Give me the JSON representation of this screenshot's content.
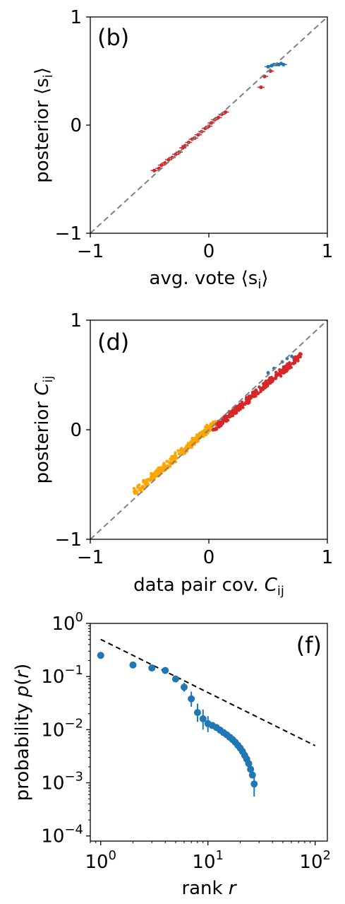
{
  "chart_data": [
    {
      "type": "scatter",
      "panel_label": "(b)",
      "xlabel": "avg. vote ⟨s",
      "xlabel_sub": "i",
      "xlabel_tail": "⟩",
      "ylabel": "posterior ⟨s",
      "ylabel_sub": "i",
      "ylabel_tail": "⟩",
      "xlim": [
        -1,
        1
      ],
      "ylim": [
        -1,
        1
      ],
      "x_ticks": [
        "−1",
        "0",
        "1"
      ],
      "y_ticks": [
        "−1",
        "0",
        "1"
      ],
      "diagonal": true,
      "colors": {
        "red": "#d62728",
        "blue": "#1f77b4",
        "diag": "#808080"
      },
      "series": [
        {
          "color": "red",
          "points": [
            [
              -0.46,
              -0.42
            ],
            [
              -0.42,
              -0.4
            ],
            [
              -0.4,
              -0.37
            ],
            [
              -0.37,
              -0.35
            ],
            [
              -0.34,
              -0.32
            ],
            [
              -0.31,
              -0.3
            ],
            [
              -0.28,
              -0.27
            ],
            [
              -0.25,
              -0.25
            ],
            [
              -0.22,
              -0.21
            ],
            [
              -0.2,
              -0.19
            ],
            [
              -0.17,
              -0.16
            ],
            [
              -0.14,
              -0.13
            ],
            [
              -0.12,
              -0.12
            ],
            [
              -0.09,
              -0.09
            ],
            [
              -0.06,
              -0.06
            ],
            [
              -0.03,
              -0.03
            ],
            [
              0.0,
              -0.01
            ],
            [
              0.02,
              0.02
            ],
            [
              0.05,
              0.05
            ],
            [
              0.08,
              0.07
            ],
            [
              0.11,
              0.1
            ],
            [
              0.14,
              0.12
            ],
            [
              0.44,
              0.35
            ],
            [
              0.47,
              0.45
            ],
            [
              0.52,
              0.5
            ]
          ]
        },
        {
          "color": "blue",
          "points": [
            [
              0.5,
              0.54
            ],
            [
              0.53,
              0.55
            ],
            [
              0.55,
              0.56
            ],
            [
              0.57,
              0.56
            ],
            [
              0.59,
              0.56
            ],
            [
              0.61,
              0.57
            ],
            [
              0.63,
              0.56
            ]
          ]
        }
      ]
    },
    {
      "type": "scatter",
      "panel_label": "(d)",
      "xlabel": "data pair cov. ",
      "xlabel_var": "C",
      "xlabel_sub": "ij",
      "ylabel": "posterior ",
      "ylabel_var": "C",
      "ylabel_sub": "ij",
      "xlim": [
        -1,
        1
      ],
      "ylim": [
        -1,
        1
      ],
      "x_ticks": [
        "−1",
        "0",
        "1"
      ],
      "y_ticks": [
        "−1",
        "0",
        "1"
      ],
      "diagonal": true,
      "colors": {
        "orange": "#ffa500",
        "red": "#d62728",
        "blue": "#1f77b4",
        "diag": "#808080"
      },
      "series": [
        {
          "color": "orange",
          "band": {
            "x_start": -0.62,
            "x_end": 0.05,
            "y_start": -0.57,
            "y_end": 0.06,
            "spread": 0.035
          }
        },
        {
          "color": "red",
          "band": {
            "x_start": 0.05,
            "x_end": 0.78,
            "y_start": 0.02,
            "y_end": 0.68,
            "spread": 0.03
          }
        },
        {
          "color": "blue",
          "points": [
            [
              0.5,
              0.52
            ],
            [
              0.55,
              0.56
            ],
            [
              0.62,
              0.62
            ],
            [
              0.66,
              0.65
            ],
            [
              0.7,
              0.67
            ]
          ]
        }
      ]
    },
    {
      "type": "scatter",
      "panel_label": "(f)",
      "xlabel": "rank ",
      "xlabel_var": "r",
      "ylabel": "probability ",
      "ylabel_var": "p",
      "ylabel_tail_pre": "(",
      "ylabel_tail_post": ")",
      "xscale": "log",
      "yscale": "log",
      "xlim": [
        0.8,
        130
      ],
      "ylim": [
        8e-05,
        1
      ],
      "x_ticks": [
        {
          "base": "10",
          "exp": "0",
          "value": 1
        },
        {
          "base": "10",
          "exp": "1",
          "value": 10
        },
        {
          "base": "10",
          "exp": "2",
          "value": 100
        }
      ],
      "y_ticks": [
        {
          "base": "10",
          "exp": "0",
          "value": 1
        },
        {
          "base": "10",
          "exp": "−1",
          "value": 0.1
        },
        {
          "base": "10",
          "exp": "−2",
          "value": 0.01
        },
        {
          "base": "10",
          "exp": "−3",
          "value": 0.001
        },
        {
          "base": "10",
          "exp": "−4",
          "value": 0.0001
        }
      ],
      "colors": {
        "points": "#1f77b4",
        "powerlaw": "#000000"
      },
      "powerlaw": {
        "x": [
          1,
          100
        ],
        "y": [
          0.5,
          0.005
        ]
      },
      "points": [
        {
          "x": 1,
          "y": 0.25
        },
        {
          "x": 2,
          "y": 0.165
        },
        {
          "x": 3,
          "y": 0.145
        },
        {
          "x": 4,
          "y": 0.13
        },
        {
          "x": 5,
          "y": 0.09
        },
        {
          "x": 6,
          "y": 0.063,
          "err": [
            0.052,
            0.076
          ]
        },
        {
          "x": 7,
          "y": 0.038,
          "err": [
            0.027,
            0.052
          ]
        },
        {
          "x": 8,
          "y": 0.021,
          "err": [
            0.014,
            0.031
          ]
        },
        {
          "x": 9,
          "y": 0.016,
          "err": [
            0.01,
            0.024
          ]
        },
        {
          "x": 10,
          "y": 0.013,
          "err": [
            0.009,
            0.018
          ]
        },
        {
          "x": 11,
          "y": 0.012
        },
        {
          "x": 12,
          "y": 0.011
        },
        {
          "x": 13,
          "y": 0.0098
        },
        {
          "x": 14,
          "y": 0.0088
        },
        {
          "x": 15,
          "y": 0.008
        },
        {
          "x": 16,
          "y": 0.0072
        },
        {
          "x": 17,
          "y": 0.0065
        },
        {
          "x": 18,
          "y": 0.0058
        },
        {
          "x": 19,
          "y": 0.0051
        },
        {
          "x": 20,
          "y": 0.0045
        },
        {
          "x": 21,
          "y": 0.0039
        },
        {
          "x": 22,
          "y": 0.0033
        },
        {
          "x": 23,
          "y": 0.0028
        },
        {
          "x": 24,
          "y": 0.0023
        },
        {
          "x": 25,
          "y": 0.0018
        },
        {
          "x": 26,
          "y": 0.0014
        },
        {
          "x": 27,
          "y": 0.00095,
          "err": [
            0.00055,
            0.0014
          ]
        }
      ]
    }
  ]
}
